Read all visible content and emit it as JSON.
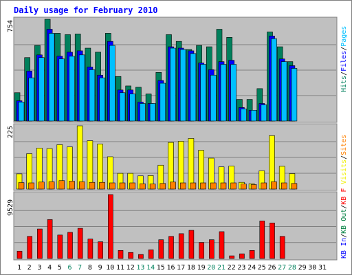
{
  "chart_data": [
    {
      "type": "bar",
      "panel": "top",
      "title": "Daily usage for February 2010",
      "ymax_label": "754",
      "ylim": [
        0,
        754
      ],
      "categories": [
        "1",
        "2",
        "3",
        "4",
        "5",
        "6",
        "7",
        "8",
        "9",
        "10",
        "11",
        "12",
        "13",
        "14",
        "15",
        "16",
        "17",
        "18",
        "19",
        "20",
        "21",
        "22",
        "23",
        "24",
        "25",
        "26",
        "27",
        "28",
        "29",
        "30",
        "31"
      ],
      "weekend_days": [
        "6",
        "7",
        "13",
        "14",
        "20",
        "21",
        "27",
        "28"
      ],
      "axis_legend": [
        {
          "text": "Hits",
          "color": "#00805c"
        },
        {
          "text": "/",
          "color": "#000000"
        },
        {
          "text": "Files",
          "color": "#0000ff"
        },
        {
          "text": "/",
          "color": "#000000"
        },
        {
          "text": "Pages",
          "color": "#00c0ff"
        }
      ],
      "series": [
        {
          "name": "Hits",
          "color": "#00805c",
          "values": [
            210,
            470,
            560,
            754,
            650,
            640,
            645,
            540,
            510,
            650,
            330,
            260,
            250,
            200,
            360,
            640,
            590,
            530,
            560,
            550,
            680,
            620,
            160,
            160,
            240,
            660,
            550,
            440,
            0,
            0,
            0
          ]
        },
        {
          "name": "Files",
          "color": "#0000ff",
          "values": [
            150,
            370,
            490,
            680,
            480,
            510,
            520,
            400,
            340,
            590,
            230,
            230,
            140,
            130,
            300,
            550,
            540,
            520,
            430,
            380,
            440,
            450,
            100,
            80,
            130,
            630,
            460,
            410,
            0,
            0,
            0
          ]
        },
        {
          "name": "Pages",
          "color": "#00c0ff",
          "values": [
            140,
            320,
            470,
            650,
            460,
            480,
            490,
            380,
            320,
            560,
            210,
            200,
            130,
            130,
            280,
            540,
            530,
            500,
            420,
            340,
            420,
            420,
            90,
            80,
            120,
            610,
            440,
            390,
            0,
            0,
            0
          ]
        }
      ]
    },
    {
      "type": "bar",
      "panel": "middle",
      "ymax_label": "225",
      "ylim": [
        0,
        225
      ],
      "axis_legend": [
        {
          "text": "Visits",
          "color": "#f0f000"
        },
        {
          "text": "/",
          "color": "#000000"
        },
        {
          "text": "Sites",
          "color": "#ff8000"
        }
      ],
      "series": [
        {
          "name": "Visits",
          "color": "#ffff00",
          "values": [
            54,
            126,
            146,
            144,
            158,
            150,
            225,
            172,
            160,
            115,
            56,
            56,
            47,
            48,
            85,
            166,
            170,
            180,
            138,
            110,
            79,
            82,
            24,
            19,
            65,
            190,
            81,
            55,
            0,
            0,
            0
          ]
        },
        {
          "name": "Sites",
          "color": "#ff8000",
          "values": [
            23,
            22,
            25,
            26,
            30,
            28,
            26,
            24,
            24,
            22,
            22,
            22,
            19,
            18,
            20,
            25,
            22,
            22,
            22,
            22,
            22,
            22,
            18,
            16,
            22,
            26,
            22,
            20,
            0,
            0,
            0
          ]
        }
      ]
    },
    {
      "type": "bar",
      "panel": "bottom",
      "ymax_label": "9529",
      "ylim": [
        0,
        9529
      ],
      "axis_legend": [
        {
          "text": "KB In",
          "color": "#0000ff"
        },
        {
          "text": "/",
          "color": "#000000"
        },
        {
          "text": "KB Out",
          "color": "#008040"
        },
        {
          "text": "/",
          "color": "#000000"
        },
        {
          "text": "KB F",
          "color": "#ff0000"
        }
      ],
      "series": [
        {
          "name": "KB F",
          "color": "#ff0000",
          "values": [
            1100,
            3300,
            4400,
            5800,
            3500,
            3900,
            4500,
            2900,
            2500,
            9529,
            1200,
            900,
            600,
            1300,
            2800,
            3300,
            3700,
            4200,
            2400,
            2800,
            4000,
            400,
            700,
            1200,
            5600,
            5300,
            3300,
            0,
            0,
            0,
            0
          ]
        }
      ]
    }
  ]
}
